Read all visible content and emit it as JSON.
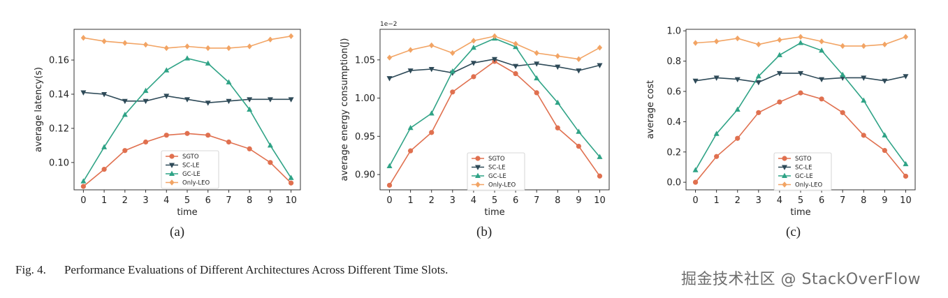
{
  "figure": {
    "caption_number": "Fig. 4.",
    "caption_text": "Performance Evaluations of Different Architectures Across Different Time Slots.",
    "watermark": "掘金技术社区 @ StackOverFlow",
    "colors": {
      "SGTO": "#e0704f",
      "SC-LE": "#2e4a58",
      "GC-LE": "#2fa386",
      "Only-LEO": "#f2a464"
    }
  },
  "chart_data": [
    {
      "type": "line",
      "sublabel": "(a)",
      "xlabel": "time",
      "ylabel": "average latency(s)",
      "offset_text": "",
      "x": [
        0,
        1,
        2,
        3,
        4,
        5,
        6,
        7,
        8,
        9,
        10
      ],
      "xticks": [
        "0",
        "1",
        "2",
        "3",
        "4",
        "5",
        "6",
        "7",
        "8",
        "9",
        "10"
      ],
      "ylim": [
        0.084,
        0.178
      ],
      "yticks": [
        0.1,
        0.12,
        0.14,
        0.16
      ],
      "ytick_labels": [
        "0.10",
        "0.12",
        "0.14",
        "0.16"
      ],
      "legend_position": "lower-center",
      "series": [
        {
          "name": "SGTO",
          "marker": "circle",
          "values": [
            0.086,
            0.096,
            0.107,
            0.112,
            0.116,
            0.117,
            0.116,
            0.112,
            0.108,
            0.1,
            0.088
          ]
        },
        {
          "name": "SC-LE",
          "marker": "triangle-down",
          "values": [
            0.141,
            0.14,
            0.136,
            0.136,
            0.139,
            0.137,
            0.135,
            0.136,
            0.137,
            0.137,
            0.137
          ]
        },
        {
          "name": "GC-LE",
          "marker": "triangle-up",
          "values": [
            0.089,
            0.109,
            0.128,
            0.142,
            0.154,
            0.161,
            0.158,
            0.147,
            0.131,
            0.11,
            0.091
          ]
        },
        {
          "name": "Only-LEO",
          "marker": "diamond",
          "values": [
            0.173,
            0.171,
            0.17,
            0.169,
            0.167,
            0.168,
            0.167,
            0.167,
            0.168,
            0.172,
            0.174
          ]
        }
      ]
    },
    {
      "type": "line",
      "sublabel": "(b)",
      "xlabel": "time",
      "ylabel": "average energy consumption(J)",
      "offset_text": "1e−2",
      "x": [
        0,
        1,
        2,
        3,
        4,
        5,
        6,
        7,
        8,
        9,
        10
      ],
      "xticks": [
        "0",
        "1",
        "2",
        "3",
        "4",
        "5",
        "6",
        "7",
        "8",
        "9",
        "10"
      ],
      "ylim": [
        0.88,
        1.09
      ],
      "yticks": [
        0.9,
        0.95,
        1.0,
        1.05
      ],
      "ytick_labels": [
        "0.90",
        "0.95",
        "1.00",
        "1.05"
      ],
      "legend_position": "lower-center",
      "series": [
        {
          "name": "SGTO",
          "marker": "circle",
          "values": [
            0.886,
            0.931,
            0.955,
            1.008,
            1.028,
            1.048,
            1.032,
            1.007,
            0.961,
            0.937,
            0.898
          ]
        },
        {
          "name": "SC-LE",
          "marker": "triangle-down",
          "values": [
            1.026,
            1.036,
            1.038,
            1.033,
            1.046,
            1.051,
            1.042,
            1.045,
            1.041,
            1.036,
            1.043
          ]
        },
        {
          "name": "GC-LE",
          "marker": "triangle-up",
          "values": [
            0.911,
            0.961,
            0.98,
            1.035,
            1.066,
            1.078,
            1.067,
            1.026,
            0.994,
            0.956,
            0.923
          ]
        },
        {
          "name": "Only-LEO",
          "marker": "diamond",
          "values": [
            1.053,
            1.063,
            1.069,
            1.059,
            1.075,
            1.081,
            1.071,
            1.059,
            1.055,
            1.051,
            1.066
          ]
        }
      ]
    },
    {
      "type": "line",
      "sublabel": "(c)",
      "xlabel": "time",
      "ylabel": "average cost",
      "offset_text": "",
      "x": [
        0,
        1,
        2,
        3,
        4,
        5,
        6,
        7,
        8,
        9,
        10
      ],
      "xticks": [
        "0",
        "1",
        "2",
        "3",
        "4",
        "5",
        "6",
        "7",
        "8",
        "9",
        "10"
      ],
      "ylim": [
        -0.05,
        1.01
      ],
      "yticks": [
        0.0,
        0.2,
        0.4,
        0.6,
        0.8,
        1.0
      ],
      "ytick_labels": [
        "0.0",
        "0.2",
        "0.4",
        "0.6",
        "0.8",
        "1.0"
      ],
      "legend_position": "lower-center",
      "series": [
        {
          "name": "SGTO",
          "marker": "circle",
          "values": [
            0.0,
            0.17,
            0.29,
            0.46,
            0.53,
            0.59,
            0.55,
            0.46,
            0.31,
            0.21,
            0.04
          ]
        },
        {
          "name": "SC-LE",
          "marker": "triangle-down",
          "values": [
            0.67,
            0.69,
            0.68,
            0.66,
            0.72,
            0.72,
            0.68,
            0.69,
            0.69,
            0.67,
            0.7
          ]
        },
        {
          "name": "GC-LE",
          "marker": "triangle-up",
          "values": [
            0.08,
            0.32,
            0.48,
            0.7,
            0.84,
            0.92,
            0.87,
            0.71,
            0.54,
            0.31,
            0.12
          ]
        },
        {
          "name": "Only-LEO",
          "marker": "diamond",
          "values": [
            0.92,
            0.93,
            0.95,
            0.91,
            0.94,
            0.96,
            0.93,
            0.9,
            0.9,
            0.91,
            0.96
          ]
        }
      ]
    }
  ]
}
